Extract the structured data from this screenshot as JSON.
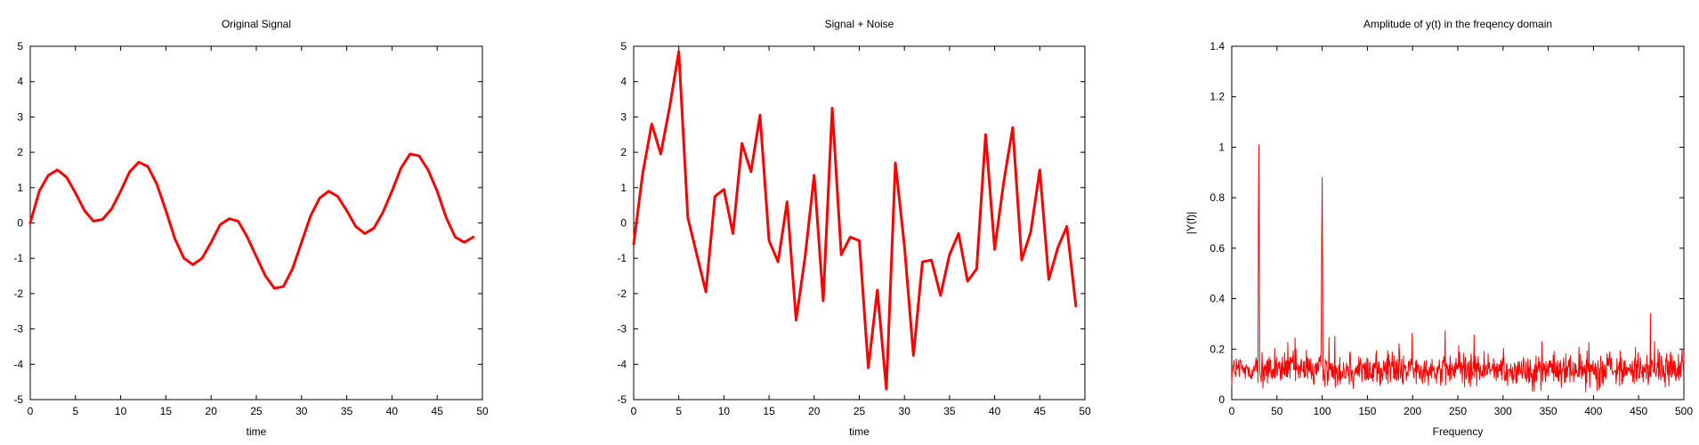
{
  "chart_data": [
    {
      "type": "line",
      "title": "Original Signal",
      "xlabel": "time",
      "ylabel": "",
      "xlim": [
        0,
        50
      ],
      "ylim": [
        -5,
        5
      ],
      "xticks": [
        "0",
        "5",
        "10",
        "15",
        "20",
        "25",
        "30",
        "35",
        "40",
        "45",
        "50"
      ],
      "yticks": [
        "5",
        "4",
        "3",
        "2",
        "1",
        "0",
        "-1",
        "-2",
        "-3",
        "-4",
        "-5"
      ],
      "grid": false,
      "line_color": "#ff0000",
      "series": [
        {
          "x": [
            0,
            1,
            2,
            3,
            4,
            5,
            6,
            7,
            8,
            9,
            10,
            11,
            12,
            13,
            14,
            15,
            16,
            17,
            18,
            19,
            20,
            21,
            22,
            23,
            24,
            25,
            26,
            27,
            28,
            29,
            30,
            31,
            32,
            33,
            34,
            35,
            36,
            37,
            38,
            39,
            40,
            41,
            42,
            43,
            44,
            45,
            46,
            47,
            48,
            49
          ],
          "values": [
            0.0,
            0.9,
            1.35,
            1.5,
            1.3,
            0.85,
            0.35,
            0.05,
            0.1,
            0.4,
            0.9,
            1.45,
            1.72,
            1.6,
            1.1,
            0.35,
            -0.45,
            -1.0,
            -1.18,
            -1.0,
            -0.55,
            -0.05,
            0.12,
            0.05,
            -0.4,
            -0.95,
            -1.5,
            -1.85,
            -1.8,
            -1.3,
            -0.55,
            0.2,
            0.7,
            0.9,
            0.75,
            0.35,
            -0.1,
            -0.3,
            -0.15,
            0.3,
            0.9,
            1.55,
            1.95,
            1.9,
            1.5,
            0.9,
            0.15,
            -0.4,
            -0.55,
            -0.4
          ]
        }
      ]
    },
    {
      "type": "line",
      "title": "Signal + Noise",
      "xlabel": "time",
      "ylabel": "",
      "xlim": [
        0,
        50
      ],
      "ylim": [
        -5,
        5
      ],
      "xticks": [
        "0",
        "5",
        "10",
        "15",
        "20",
        "25",
        "30",
        "35",
        "40",
        "45",
        "50"
      ],
      "yticks": [
        "5",
        "4",
        "3",
        "2",
        "1",
        "0",
        "-1",
        "-2",
        "-3",
        "-4",
        "-5"
      ],
      "grid": false,
      "line_color": "#ff0000",
      "series": [
        {
          "x": [
            0,
            1,
            2,
            3,
            4,
            5,
            6,
            7,
            8,
            9,
            10,
            11,
            12,
            13,
            14,
            15,
            16,
            17,
            18,
            19,
            20,
            21,
            22,
            23,
            24,
            25,
            26,
            27,
            28,
            29,
            30,
            31,
            32,
            33,
            34,
            35,
            36,
            37,
            38,
            39,
            40,
            41,
            42,
            43,
            44,
            45,
            46,
            47,
            48,
            49
          ],
          "values": [
            -0.6,
            1.4,
            2.8,
            1.95,
            3.3,
            4.85,
            0.15,
            -0.9,
            -1.95,
            0.75,
            0.95,
            -0.3,
            2.25,
            1.45,
            3.05,
            -0.5,
            -1.1,
            0.6,
            -2.75,
            -0.95,
            1.35,
            -2.2,
            3.25,
            -0.9,
            -0.4,
            -0.5,
            -4.1,
            -1.9,
            -4.7,
            1.7,
            -0.65,
            -3.75,
            -1.1,
            -1.05,
            -2.05,
            -0.9,
            -0.3,
            -1.65,
            -1.3,
            2.5,
            -0.75,
            1.15,
            2.7,
            -1.05,
            -0.25,
            1.5,
            -1.6,
            -0.7,
            -0.1,
            -2.35
          ]
        }
      ]
    },
    {
      "type": "line",
      "title": "Amplitude of y(t) in the freqency domain",
      "xlabel": "Frequency",
      "ylabel": "|Y(f)|",
      "xlim": [
        0,
        500
      ],
      "ylim": [
        0,
        1.4
      ],
      "xticks": [
        "0",
        "50",
        "100",
        "150",
        "200",
        "250",
        "300",
        "350",
        "400",
        "450",
        "500"
      ],
      "yticks": [
        "1.4",
        "1.2",
        "1",
        "0.8",
        "0.6",
        "0.4",
        "0.2",
        "0"
      ],
      "grid": false,
      "line_color": "#ff0000",
      "peaks": [
        {
          "x": 30,
          "y": 1.01
        },
        {
          "x": 100,
          "y": 0.88
        }
      ],
      "noise_floor": {
        "min": 0.02,
        "max": 0.25,
        "typical": 0.11
      },
      "series": [
        {
          "x_range": [
            0,
            500
          ],
          "point_count": 1001,
          "seed": 12345
        }
      ]
    }
  ]
}
